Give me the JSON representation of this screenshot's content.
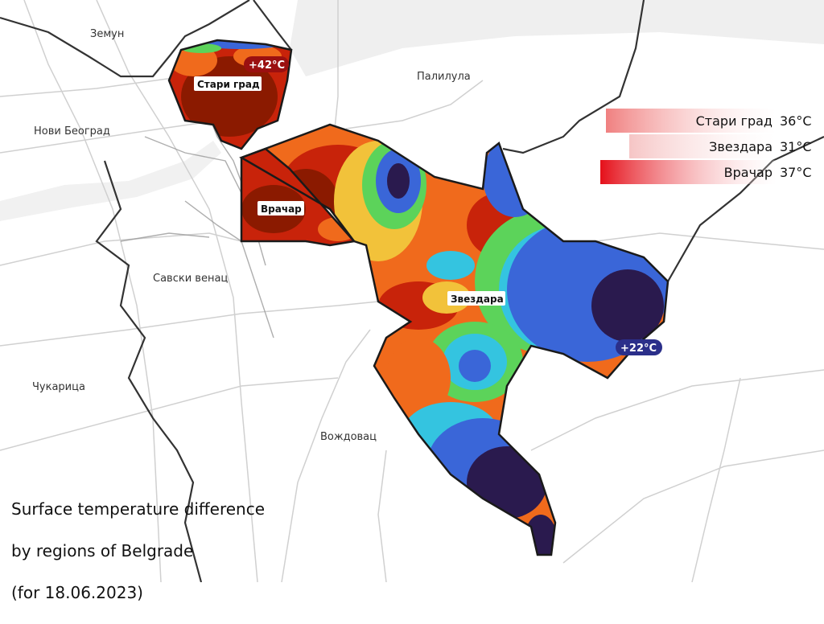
{
  "title_lines": [
    "Surface temperature difference",
    "by regions of Belgrade",
    "(for 18.06.2023)"
  ],
  "districts": [
    {
      "key": "zemun",
      "name": "Земун"
    },
    {
      "key": "palilula",
      "name": "Палилула"
    },
    {
      "key": "novi_beograd",
      "name": "Нови Београд"
    },
    {
      "key": "savski_venac",
      "name": "Савски венац"
    },
    {
      "key": "cukarica",
      "name": "Чукарица"
    },
    {
      "key": "vozdovac",
      "name": "Вождовац"
    }
  ],
  "regions": [
    {
      "key": "stari_grad",
      "name": "Стари град"
    },
    {
      "key": "vracar",
      "name": "Врачар"
    },
    {
      "key": "zvezdara",
      "name": "Звездара"
    }
  ],
  "badges": {
    "max": {
      "text": "+42°C",
      "color": "#9b1010"
    },
    "min": {
      "text": "+22°C",
      "color": "#2b2f8a"
    }
  },
  "legend": [
    {
      "name": "Стари град",
      "value": "36°C",
      "color": "#f08080"
    },
    {
      "name": "Звездара",
      "value": "31°C",
      "color": "#f6c5c5"
    },
    {
      "name": "Врачар",
      "value": "37°C",
      "color": "#e5101a"
    }
  ],
  "colors": {
    "very_hot": "#8b1a00",
    "hot": "#c8230a",
    "warm": "#f06a1c",
    "mild": "#f2c23a",
    "green": "#5cd35a",
    "cyan": "#34c4e0",
    "blue": "#3a66d8",
    "cool": "#2c3fa3",
    "cold": "#2a1a4e",
    "boundary": "#1a1a1a"
  }
}
